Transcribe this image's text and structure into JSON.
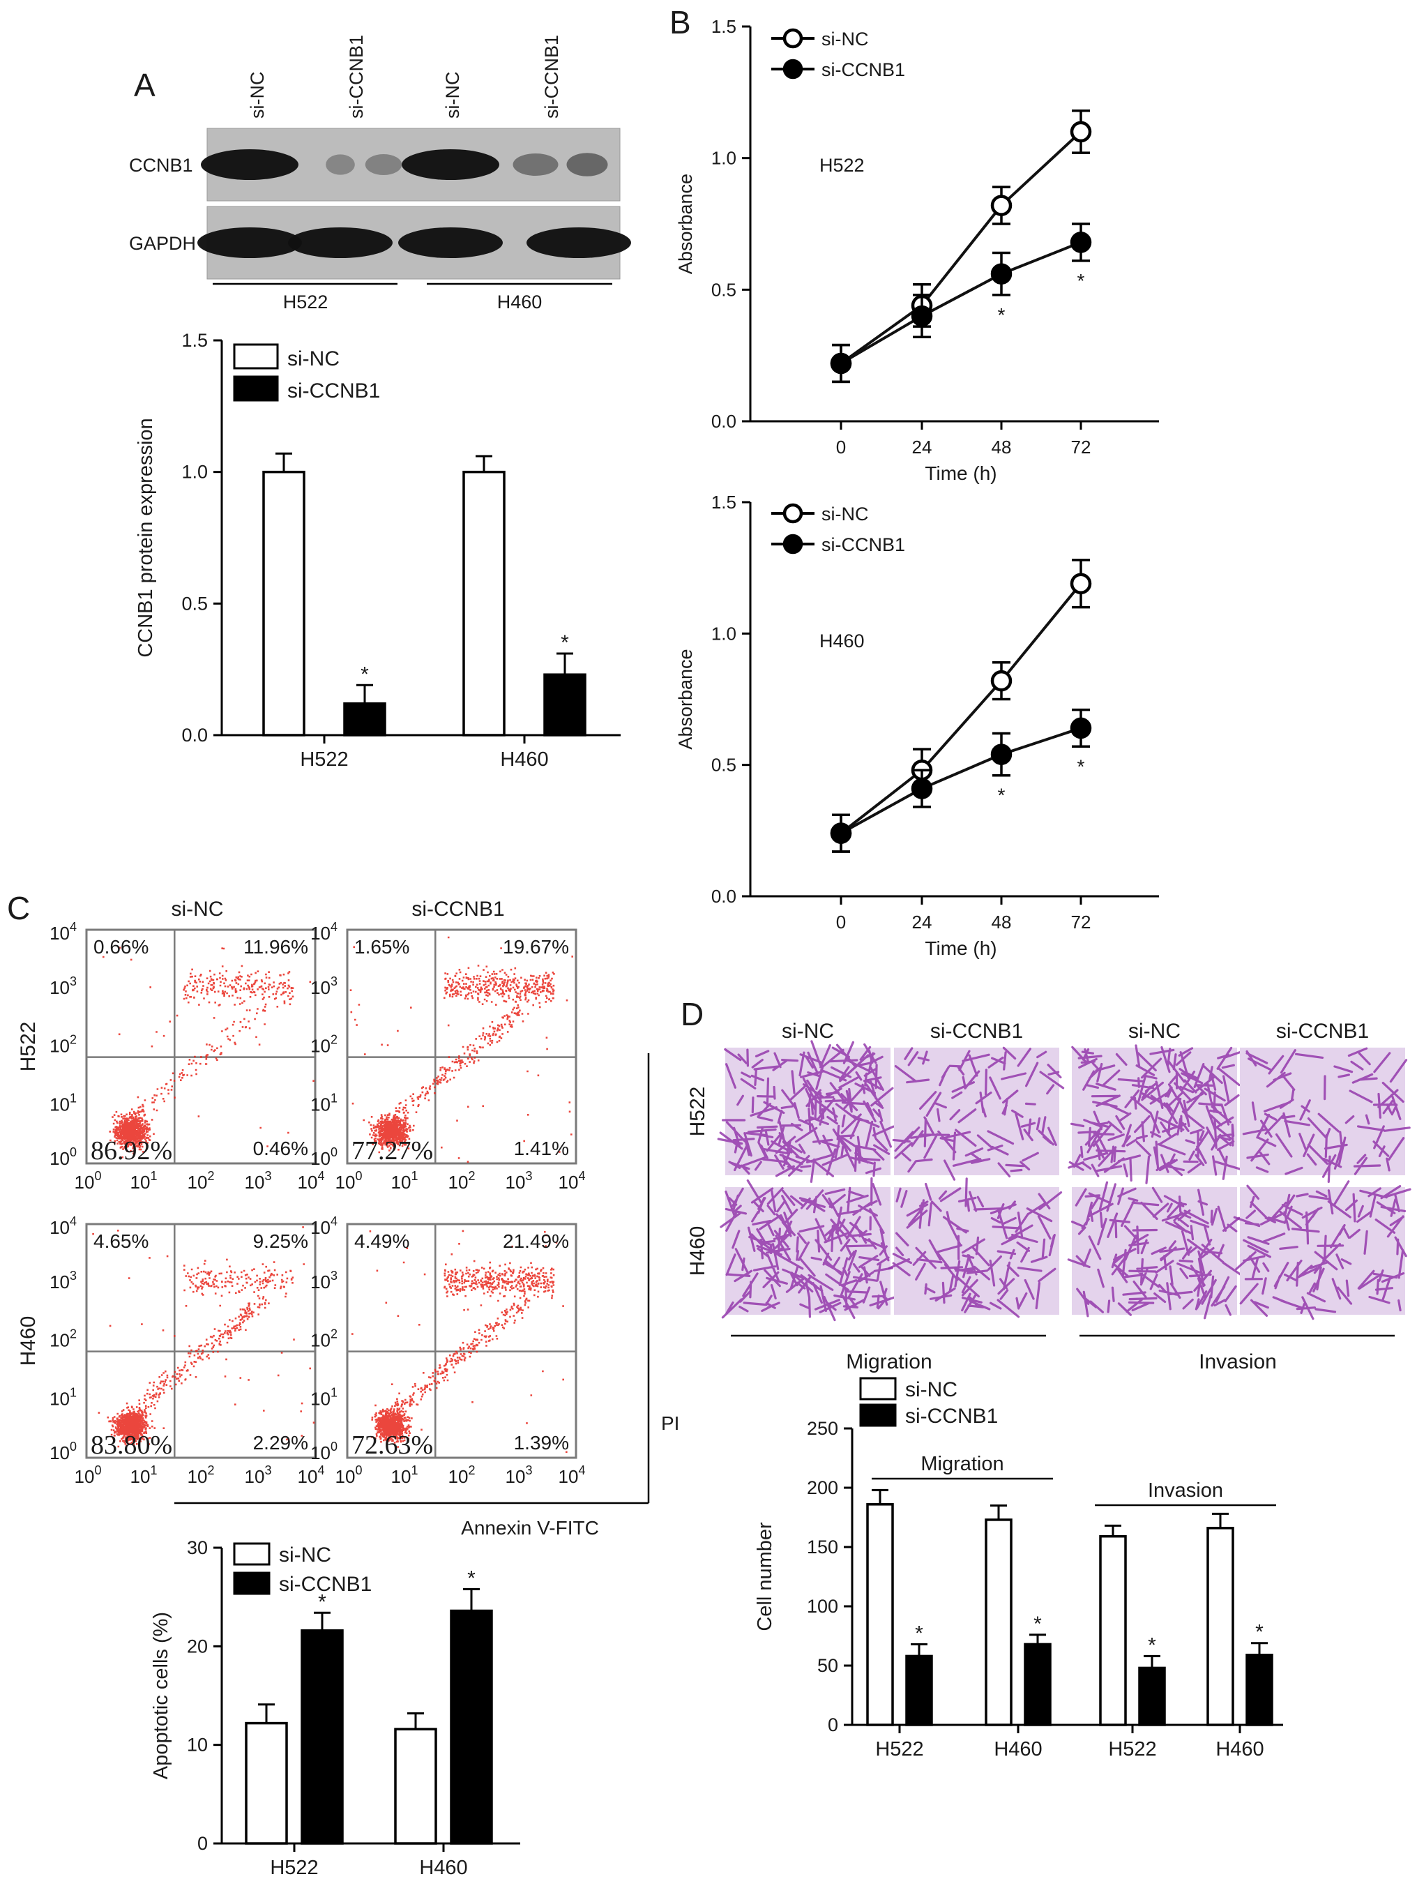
{
  "figure": {
    "panel_labels": {
      "a": "A",
      "b": "B",
      "c": "C",
      "d": "D"
    }
  },
  "colors": {
    "hollow": "#ffffff",
    "solid": "#000000",
    "flow_dots": "#e8261b",
    "stain": "#8e2fa8",
    "stain_bg": "#e4d3ec",
    "blot_bg": "#bcbcbc"
  },
  "chart_data": [
    {
      "id": "A-blot",
      "type": "western_blot",
      "lane_labels": [
        "si-NC",
        "si-CCNB1",
        "si-NC",
        "si-CCNB1"
      ],
      "rows": [
        "CCNB1",
        "GAPDH"
      ],
      "groups": [
        "H522",
        "H460"
      ],
      "bands": {
        "CCNB1": [
          1.0,
          0.08,
          0.12,
          1.0,
          0.25,
          0.35
        ],
        "GAPDH": [
          1.0,
          1.0,
          1.0,
          1.0,
          1.0,
          1.0
        ]
      }
    },
    {
      "id": "A-bar",
      "type": "bar",
      "ylabel": "CCNB1 protein expression",
      "ylim": [
        0,
        1.5
      ],
      "yticks": [
        "0.0",
        "0.5",
        "1.0",
        "1.5"
      ],
      "categories": [
        "H522",
        "H460"
      ],
      "series": [
        {
          "name": "si-NC",
          "values": [
            1.0,
            1.0
          ],
          "errors": [
            0.07,
            0.06
          ]
        },
        {
          "name": "si-CCNB1",
          "values": [
            0.12,
            0.23
          ],
          "errors": [
            0.07,
            0.08
          ]
        }
      ],
      "significance": [
        "*",
        "*"
      ]
    },
    {
      "id": "B-H522",
      "type": "line",
      "annotation": "H522",
      "xlabel": "Time (h)",
      "ylabel": "Absorbance",
      "x": [
        0,
        24,
        48,
        72
      ],
      "xticks": [
        "0",
        "24",
        "48",
        "72"
      ],
      "ylim": [
        0,
        1.5
      ],
      "yticks": [
        "0.0",
        "0.5",
        "1.0",
        "1.5"
      ],
      "series": [
        {
          "name": "si-NC",
          "values": [
            0.22,
            0.44,
            0.82,
            1.1
          ],
          "errors": [
            0.07,
            0.08,
            0.07,
            0.08
          ]
        },
        {
          "name": "si-CCNB1",
          "values": [
            0.22,
            0.4,
            0.56,
            0.68
          ],
          "errors": [
            0.07,
            0.08,
            0.08,
            0.07
          ]
        }
      ],
      "significance": [
        "",
        "",
        "*",
        "*"
      ]
    },
    {
      "id": "B-H460",
      "type": "line",
      "annotation": "H460",
      "xlabel": "Time (h)",
      "ylabel": "Absorbance",
      "x": [
        0,
        24,
        48,
        72
      ],
      "xticks": [
        "0",
        "24",
        "48",
        "72"
      ],
      "ylim": [
        0,
        1.5
      ],
      "yticks": [
        "0.0",
        "0.5",
        "1.0",
        "1.5"
      ],
      "series": [
        {
          "name": "si-NC",
          "values": [
            0.24,
            0.48,
            0.82,
            1.19
          ],
          "errors": [
            0.07,
            0.08,
            0.07,
            0.09
          ]
        },
        {
          "name": "si-CCNB1",
          "values": [
            0.24,
            0.41,
            0.54,
            0.64
          ],
          "errors": [
            0.07,
            0.07,
            0.08,
            0.07
          ]
        }
      ],
      "significance": [
        "",
        "",
        "*",
        "*"
      ]
    },
    {
      "id": "C-flow",
      "type": "scatter",
      "col_labels": [
        "si-NC",
        "si-CCNB1"
      ],
      "row_labels": [
        "H522",
        "H460"
      ],
      "xlabel": "Annexin V-FITC",
      "ylabel": "PI",
      "tick_exponents": [
        "0",
        "1",
        "2",
        "3",
        "4"
      ],
      "tick_base": "10",
      "plots": [
        {
          "row": 0,
          "col": 0,
          "ul": "0.66%",
          "ur": "11.96%",
          "ll": "86.92%",
          "lr": "0.46%"
        },
        {
          "row": 0,
          "col": 1,
          "ul": "1.65%",
          "ur": "19.67%",
          "ll": "77.27%",
          "lr": "1.41%"
        },
        {
          "row": 1,
          "col": 0,
          "ul": "4.65%",
          "ur": "9.25%",
          "ll": "83.80%",
          "lr": "2.29%"
        },
        {
          "row": 1,
          "col": 1,
          "ul": "4.49%",
          "ur": "21.49%",
          "ll": "72.63%",
          "lr": "1.39%"
        }
      ]
    },
    {
      "id": "C-bar",
      "type": "bar",
      "ylabel": "Apoptotic cells (%)",
      "ylim": [
        0,
        30
      ],
      "yticks": [
        "0",
        "10",
        "20",
        "30"
      ],
      "categories": [
        "H522",
        "H460"
      ],
      "series": [
        {
          "name": "si-NC",
          "values": [
            12.2,
            11.6
          ],
          "errors": [
            1.9,
            1.6
          ]
        },
        {
          "name": "si-CCNB1",
          "values": [
            21.6,
            23.6
          ],
          "errors": [
            1.8,
            2.2
          ]
        }
      ],
      "significance": [
        "*",
        "*"
      ]
    },
    {
      "id": "D-images",
      "type": "image_grid",
      "col_labels": [
        "si-NC",
        "si-CCNB1",
        "si-NC",
        "si-CCNB1"
      ],
      "row_labels": [
        "H522",
        "H460"
      ],
      "groups": [
        "Migration",
        "Invasion"
      ]
    },
    {
      "id": "D-bar",
      "type": "bar",
      "ylabel": "Cell number",
      "ylim": [
        0,
        250
      ],
      "yticks": [
        "0",
        "50",
        "100",
        "150",
        "200",
        "250"
      ],
      "categories": [
        "H522",
        "H460",
        "H522",
        "H460"
      ],
      "groups": [
        "Migration",
        "Invasion"
      ],
      "series": [
        {
          "name": "si-NC",
          "values": [
            186,
            173,
            159,
            166
          ],
          "errors": [
            12,
            12,
            9,
            12
          ]
        },
        {
          "name": "si-CCNB1",
          "values": [
            58,
            68,
            48,
            59
          ],
          "errors": [
            10,
            8,
            10,
            10
          ]
        }
      ],
      "significance": [
        "*",
        "*",
        "*",
        "*"
      ]
    }
  ]
}
